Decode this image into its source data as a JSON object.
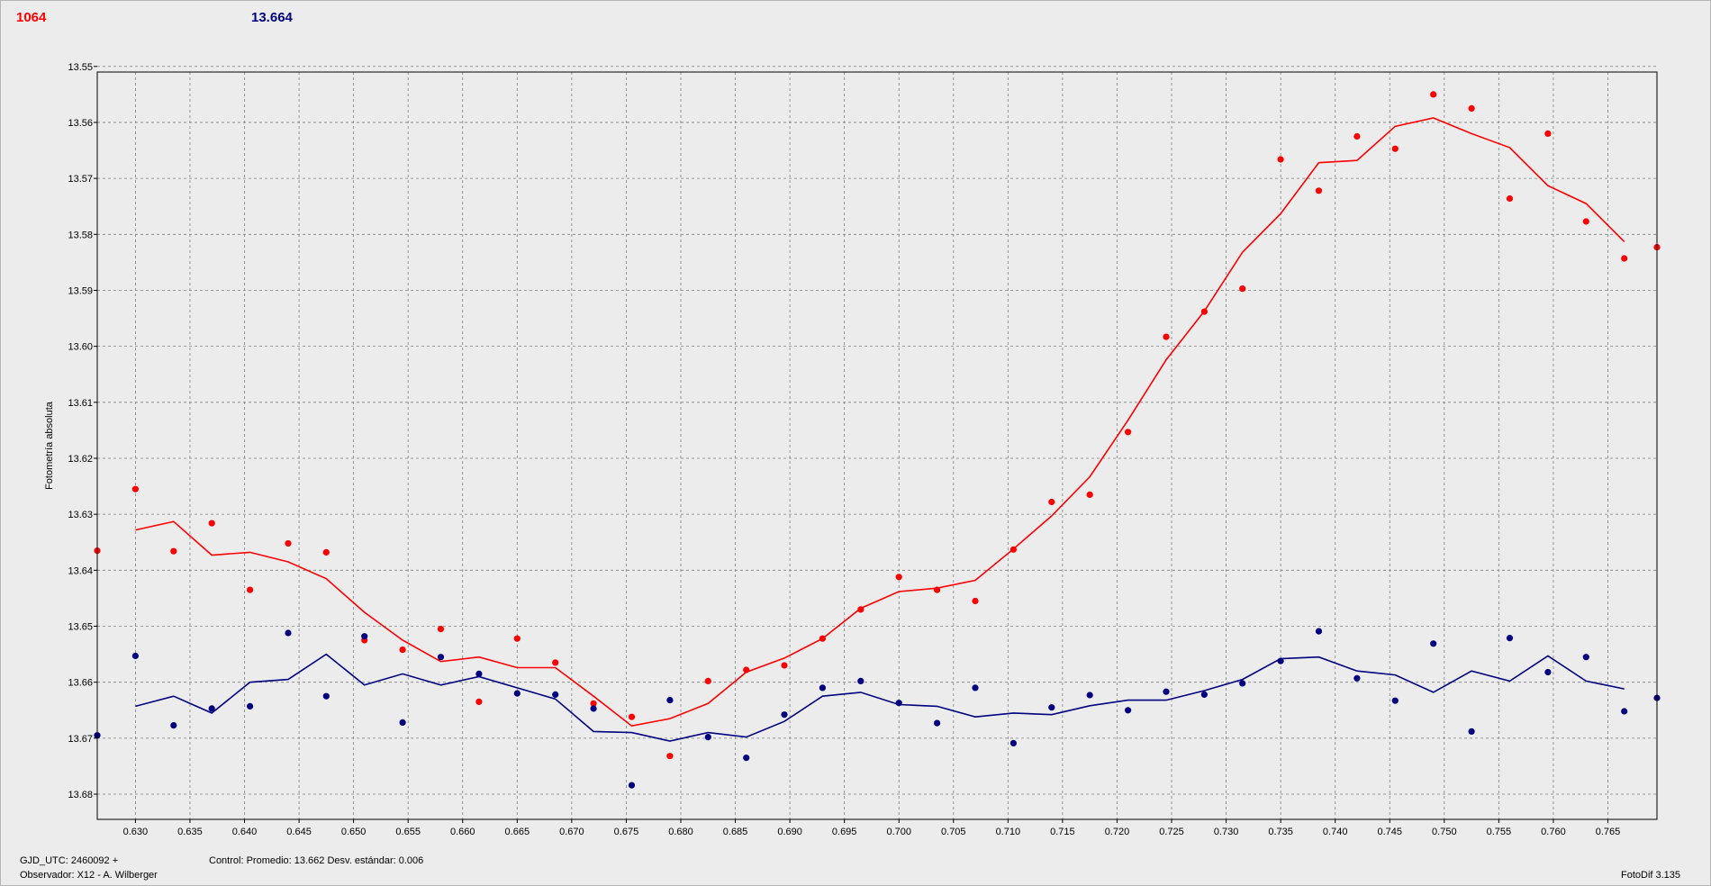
{
  "header": {
    "red_value": "1064",
    "blue_value": "13.664"
  },
  "footer": {
    "gjd": "GJD_UTC: 2460092 +",
    "observer": "Observador: X12 - A. Wilberger",
    "control": "Control: Promedio: 13.662  Desv. estándar: 0.006",
    "app": "FotoDif 3.135"
  },
  "colors": {
    "red": "#ff0000",
    "blue": "#000080",
    "grid": "#808080",
    "background": "#ececec"
  },
  "chart_data": {
    "type": "scatter",
    "ylabel": "Fotometría absoluta",
    "xlabel": "",
    "xlim": [
      0.6265,
      0.7695
    ],
    "ylim": [
      13.551,
      13.6845
    ],
    "y_inverted": true,
    "grid": true,
    "x_ticks": [
      "0.630",
      "0.635",
      "0.640",
      "0.645",
      "0.650",
      "0.655",
      "0.660",
      "0.665",
      "0.670",
      "0.675",
      "0.680",
      "0.685",
      "0.690",
      "0.695",
      "0.700",
      "0.705",
      "0.710",
      "0.715",
      "0.720",
      "0.725",
      "0.730",
      "0.735",
      "0.740",
      "0.745",
      "0.750",
      "0.755",
      "0.760",
      "0.765"
    ],
    "y_ticks": [
      "13.55",
      "13.56",
      "13.57",
      "13.58",
      "13.59",
      "13.60",
      "13.61",
      "13.62",
      "13.63",
      "13.64",
      "13.65",
      "13.66",
      "13.67",
      "13.68"
    ],
    "series": [
      {
        "color": "#ff0000",
        "points": [
          [
            0.6265,
            13.6365
          ],
          [
            0.63,
            13.6255
          ],
          [
            0.6335,
            13.6366
          ],
          [
            0.637,
            13.6316
          ],
          [
            0.6405,
            13.6435
          ],
          [
            0.644,
            13.6352
          ],
          [
            0.6475,
            13.6368
          ],
          [
            0.651,
            13.6525
          ],
          [
            0.6545,
            13.6542
          ],
          [
            0.658,
            13.6505
          ],
          [
            0.6615,
            13.6635
          ],
          [
            0.665,
            13.6522
          ],
          [
            0.6685,
            13.6565
          ],
          [
            0.672,
            13.6638
          ],
          [
            0.6755,
            13.6662
          ],
          [
            0.679,
            13.6732
          ],
          [
            0.6825,
            13.6598
          ],
          [
            0.686,
            13.6578
          ],
          [
            0.6895,
            13.657
          ],
          [
            0.693,
            13.6522
          ],
          [
            0.6965,
            13.647
          ],
          [
            0.7,
            13.6412
          ],
          [
            0.7035,
            13.6435
          ],
          [
            0.707,
            13.6455
          ],
          [
            0.7105,
            13.6363
          ],
          [
            0.714,
            13.6278
          ],
          [
            0.7175,
            13.6265
          ],
          [
            0.721,
            13.6153
          ],
          [
            0.7245,
            13.5983
          ],
          [
            0.728,
            13.5938
          ],
          [
            0.7315,
            13.5897
          ],
          [
            0.735,
            13.5666
          ],
          [
            0.7385,
            13.5722
          ],
          [
            0.742,
            13.5625
          ],
          [
            0.7455,
            13.5647
          ],
          [
            0.749,
            13.555
          ],
          [
            0.7525,
            13.5575
          ],
          [
            0.756,
            13.5736
          ],
          [
            0.7595,
            13.562
          ],
          [
            0.763,
            13.5777
          ],
          [
            0.7665,
            13.5843
          ],
          [
            0.7695,
            13.5823
          ]
        ],
        "line": [
          [
            0.63,
            13.6328
          ],
          [
            0.6335,
            13.6313
          ],
          [
            0.637,
            13.6373
          ],
          [
            0.6405,
            13.6368
          ],
          [
            0.644,
            13.6385
          ],
          [
            0.6475,
            13.6415
          ],
          [
            0.651,
            13.6475
          ],
          [
            0.6545,
            13.6525
          ],
          [
            0.658,
            13.6563
          ],
          [
            0.6615,
            13.6555
          ],
          [
            0.665,
            13.6574
          ],
          [
            0.6685,
            13.6574
          ],
          [
            0.672,
            13.6625
          ],
          [
            0.6755,
            13.6678
          ],
          [
            0.679,
            13.6665
          ],
          [
            0.6825,
            13.6638
          ],
          [
            0.686,
            13.6582
          ],
          [
            0.6895,
            13.6557
          ],
          [
            0.693,
            13.6522
          ],
          [
            0.6965,
            13.6468
          ],
          [
            0.7,
            13.6438
          ],
          [
            0.7035,
            13.6432
          ],
          [
            0.707,
            13.6418
          ],
          [
            0.7105,
            13.6362
          ],
          [
            0.714,
            13.6303
          ],
          [
            0.7175,
            13.6233
          ],
          [
            0.721,
            13.6132
          ],
          [
            0.7245,
            13.6024
          ],
          [
            0.728,
            13.5937
          ],
          [
            0.7315,
            13.5832
          ],
          [
            0.735,
            13.5763
          ],
          [
            0.7385,
            13.5672
          ],
          [
            0.742,
            13.5668
          ],
          [
            0.7455,
            13.5607
          ],
          [
            0.749,
            13.5592
          ],
          [
            0.7525,
            13.562
          ],
          [
            0.756,
            13.5645
          ],
          [
            0.7595,
            13.5713
          ],
          [
            0.763,
            13.5745
          ],
          [
            0.7665,
            13.5813
          ]
        ]
      },
      {
        "color": "#000080",
        "points": [
          [
            0.6265,
            13.6695
          ],
          [
            0.63,
            13.6553
          ],
          [
            0.6335,
            13.6677
          ],
          [
            0.637,
            13.6647
          ],
          [
            0.6405,
            13.6643
          ],
          [
            0.644,
            13.6512
          ],
          [
            0.6475,
            13.6625
          ],
          [
            0.651,
            13.6518
          ],
          [
            0.6545,
            13.6672
          ],
          [
            0.658,
            13.6555
          ],
          [
            0.6615,
            13.6585
          ],
          [
            0.665,
            13.662
          ],
          [
            0.6685,
            13.6622
          ],
          [
            0.672,
            13.6647
          ],
          [
            0.6755,
            13.6784
          ],
          [
            0.679,
            13.6632
          ],
          [
            0.6825,
            13.6698
          ],
          [
            0.686,
            13.6735
          ],
          [
            0.6895,
            13.6658
          ],
          [
            0.693,
            13.661
          ],
          [
            0.6965,
            13.6598
          ],
          [
            0.7,
            13.6637
          ],
          [
            0.7035,
            13.6673
          ],
          [
            0.707,
            13.661
          ],
          [
            0.7105,
            13.6709
          ],
          [
            0.714,
            13.6645
          ],
          [
            0.7175,
            13.6623
          ],
          [
            0.721,
            13.665
          ],
          [
            0.7245,
            13.6617
          ],
          [
            0.728,
            13.6622
          ],
          [
            0.7315,
            13.6602
          ],
          [
            0.735,
            13.6562
          ],
          [
            0.7385,
            13.6509
          ],
          [
            0.742,
            13.6593
          ],
          [
            0.7455,
            13.6633
          ],
          [
            0.749,
            13.6531
          ],
          [
            0.7525,
            13.6688
          ],
          [
            0.756,
            13.6521
          ],
          [
            0.7595,
            13.6582
          ],
          [
            0.763,
            13.6555
          ],
          [
            0.7665,
            13.6652
          ],
          [
            0.7695,
            13.6628
          ]
        ],
        "line": [
          [
            0.63,
            13.6643
          ],
          [
            0.6335,
            13.6625
          ],
          [
            0.637,
            13.6655
          ],
          [
            0.6405,
            13.66
          ],
          [
            0.644,
            13.6595
          ],
          [
            0.6475,
            13.655
          ],
          [
            0.651,
            13.6605
          ],
          [
            0.6545,
            13.6585
          ],
          [
            0.658,
            13.6605
          ],
          [
            0.6615,
            13.659
          ],
          [
            0.665,
            13.661
          ],
          [
            0.6685,
            13.663
          ],
          [
            0.672,
            13.6688
          ],
          [
            0.6755,
            13.669
          ],
          [
            0.679,
            13.6705
          ],
          [
            0.6825,
            13.669
          ],
          [
            0.686,
            13.6698
          ],
          [
            0.6895,
            13.667
          ],
          [
            0.693,
            13.6625
          ],
          [
            0.6965,
            13.6618
          ],
          [
            0.7,
            13.664
          ],
          [
            0.7035,
            13.6643
          ],
          [
            0.707,
            13.6662
          ],
          [
            0.7105,
            13.6655
          ],
          [
            0.714,
            13.6658
          ],
          [
            0.7175,
            13.6642
          ],
          [
            0.721,
            13.6632
          ],
          [
            0.7245,
            13.6632
          ],
          [
            0.728,
            13.6615
          ],
          [
            0.7315,
            13.6595
          ],
          [
            0.735,
            13.6558
          ],
          [
            0.7385,
            13.6555
          ],
          [
            0.742,
            13.658
          ],
          [
            0.7455,
            13.6587
          ],
          [
            0.749,
            13.6618
          ],
          [
            0.7525,
            13.658
          ],
          [
            0.756,
            13.6598
          ],
          [
            0.7595,
            13.6553
          ],
          [
            0.763,
            13.6598
          ],
          [
            0.7665,
            13.6612
          ]
        ]
      }
    ]
  }
}
